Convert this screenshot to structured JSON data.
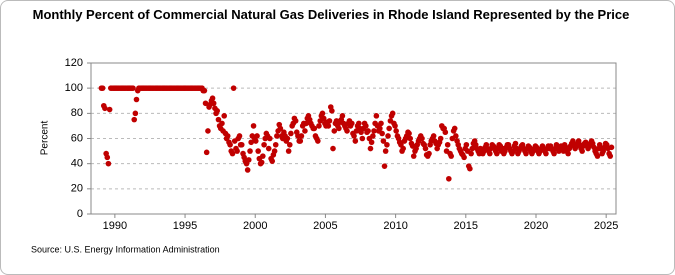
{
  "chart_data": {
    "type": "scatter",
    "title": "Monthly Percent of Commercial Natural Gas Deliveries in Rhode Island Represented by the Price",
    "y_label": "Percent",
    "source": "Source: U.S. Energy Information Administration",
    "color": "#c00000",
    "grid": true,
    "xlim": [
      1988.3,
      2025.7
    ],
    "xticks": [
      1990,
      1995,
      2000,
      2005,
      2010,
      2015,
      2020,
      2025
    ],
    "ylim": [
      0,
      120
    ],
    "yticks": [
      0,
      20,
      40,
      60,
      80,
      100,
      120
    ],
    "x": [
      1989.04,
      1989.13,
      1989.21,
      1989.29,
      1989.38,
      1989.46,
      1989.54,
      1989.63,
      1989.71,
      1989.79,
      1989.88,
      1989.96,
      1990.04,
      1990.13,
      1990.21,
      1990.29,
      1990.38,
      1990.46,
      1990.54,
      1990.63,
      1990.71,
      1990.79,
      1990.88,
      1990.96,
      1991.04,
      1991.13,
      1991.21,
      1991.29,
      1991.38,
      1991.46,
      1991.54,
      1991.63,
      1991.71,
      1991.79,
      1991.88,
      1991.96,
      1992.04,
      1992.13,
      1992.21,
      1992.29,
      1992.38,
      1992.46,
      1992.54,
      1992.63,
      1992.71,
      1992.79,
      1992.88,
      1992.96,
      1993.04,
      1993.13,
      1993.21,
      1993.29,
      1993.38,
      1993.46,
      1993.54,
      1993.63,
      1993.71,
      1993.79,
      1993.88,
      1993.96,
      1994.04,
      1994.13,
      1994.21,
      1994.29,
      1994.38,
      1994.46,
      1994.54,
      1994.63,
      1994.71,
      1994.79,
      1994.88,
      1994.96,
      1995.04,
      1995.13,
      1995.21,
      1995.29,
      1995.38,
      1995.46,
      1995.54,
      1995.63,
      1995.71,
      1995.79,
      1995.88,
      1995.96,
      1996.04,
      1996.13,
      1996.21,
      1996.29,
      1996.38,
      1996.46,
      1996.54,
      1996.63,
      1996.71,
      1996.79,
      1996.88,
      1996.96,
      1997.04,
      1997.13,
      1997.21,
      1997.29,
      1997.38,
      1997.46,
      1997.54,
      1997.63,
      1997.71,
      1997.79,
      1997.88,
      1997.96,
      1998.04,
      1998.13,
      1998.21,
      1998.29,
      1998.38,
      1998.46,
      1998.54,
      1998.63,
      1998.71,
      1998.79,
      1998.88,
      1998.96,
      1999.04,
      1999.13,
      1999.21,
      1999.29,
      1999.38,
      1999.46,
      1999.54,
      1999.63,
      1999.71,
      1999.79,
      1999.88,
      1999.96,
      2000.04,
      2000.13,
      2000.21,
      2000.29,
      2000.38,
      2000.46,
      2000.54,
      2000.63,
      2000.71,
      2000.79,
      2000.88,
      2000.96,
      2001.04,
      2001.13,
      2001.21,
      2001.29,
      2001.38,
      2001.46,
      2001.54,
      2001.63,
      2001.71,
      2001.79,
      2001.88,
      2001.96,
      2002.04,
      2002.13,
      2002.21,
      2002.29,
      2002.38,
      2002.46,
      2002.54,
      2002.63,
      2002.71,
      2002.79,
      2002.88,
      2002.96,
      2003.04,
      2003.13,
      2003.21,
      2003.29,
      2003.38,
      2003.46,
      2003.54,
      2003.63,
      2003.71,
      2003.79,
      2003.88,
      2003.96,
      2004.04,
      2004.13,
      2004.21,
      2004.29,
      2004.38,
      2004.46,
      2004.54,
      2004.63,
      2004.71,
      2004.79,
      2004.88,
      2004.96,
      2005.04,
      2005.13,
      2005.21,
      2005.29,
      2005.38,
      2005.46,
      2005.54,
      2005.63,
      2005.71,
      2005.79,
      2005.88,
      2005.96,
      2006.04,
      2006.13,
      2006.21,
      2006.29,
      2006.38,
      2006.46,
      2006.54,
      2006.63,
      2006.71,
      2006.79,
      2006.88,
      2006.96,
      2007.04,
      2007.13,
      2007.21,
      2007.29,
      2007.38,
      2007.46,
      2007.54,
      2007.63,
      2007.71,
      2007.79,
      2007.88,
      2007.96,
      2008.04,
      2008.13,
      2008.21,
      2008.29,
      2008.38,
      2008.46,
      2008.54,
      2008.63,
      2008.71,
      2008.79,
      2008.88,
      2008.96,
      2009.04,
      2009.13,
      2009.21,
      2009.29,
      2009.38,
      2009.46,
      2009.54,
      2009.63,
      2009.71,
      2009.79,
      2009.88,
      2009.96,
      2010.04,
      2010.13,
      2010.21,
      2010.29,
      2010.38,
      2010.46,
      2010.54,
      2010.63,
      2010.71,
      2010.79,
      2010.88,
      2010.96,
      2011.04,
      2011.13,
      2011.21,
      2011.29,
      2011.38,
      2011.46,
      2011.54,
      2011.63,
      2011.71,
      2011.79,
      2011.88,
      2011.96,
      2012.04,
      2012.13,
      2012.21,
      2012.29,
      2012.38,
      2012.46,
      2012.54,
      2012.63,
      2012.71,
      2012.79,
      2012.88,
      2012.96,
      2013.04,
      2013.13,
      2013.21,
      2013.29,
      2013.38,
      2013.46,
      2013.54,
      2013.63,
      2013.71,
      2013.79,
      2013.88,
      2013.96,
      2014.04,
      2014.13,
      2014.21,
      2014.29,
      2014.38,
      2014.46,
      2014.54,
      2014.63,
      2014.71,
      2014.79,
      2014.88,
      2014.96,
      2015.04,
      2015.13,
      2015.21,
      2015.29,
      2015.38,
      2015.46,
      2015.54,
      2015.63,
      2015.71,
      2015.79,
      2015.88,
      2015.96,
      2016.04,
      2016.13,
      2016.21,
      2016.29,
      2016.38,
      2016.46,
      2016.54,
      2016.63,
      2016.71,
      2016.79,
      2016.88,
      2016.96,
      2017.04,
      2017.13,
      2017.21,
      2017.29,
      2017.38,
      2017.46,
      2017.54,
      2017.63,
      2017.71,
      2017.79,
      2017.88,
      2017.96,
      2018.04,
      2018.13,
      2018.21,
      2018.29,
      2018.38,
      2018.46,
      2018.54,
      2018.63,
      2018.71,
      2018.79,
      2018.88,
      2018.96,
      2019.04,
      2019.13,
      2019.21,
      2019.29,
      2019.38,
      2019.46,
      2019.54,
      2019.63,
      2019.71,
      2019.79,
      2019.88,
      2019.96,
      2020.04,
      2020.13,
      2020.21,
      2020.29,
      2020.38,
      2020.46,
      2020.54,
      2020.63,
      2020.71,
      2020.79,
      2020.88,
      2020.96,
      2021.04,
      2021.13,
      2021.21,
      2021.29,
      2021.38,
      2021.46,
      2021.54,
      2021.63,
      2021.71,
      2021.79,
      2021.88,
      2021.96,
      2022.04,
      2022.13,
      2022.21,
      2022.29,
      2022.38,
      2022.46,
      2022.54,
      2022.63,
      2022.71,
      2022.79,
      2022.88,
      2022.96,
      2023.04,
      2023.13,
      2023.21,
      2023.29,
      2023.38,
      2023.46,
      2023.54,
      2023.63,
      2023.71,
      2023.79,
      2023.88,
      2023.96,
      2024.04,
      2024.13,
      2024.21,
      2024.29,
      2024.38,
      2024.46,
      2024.54,
      2024.63,
      2024.71,
      2024.79,
      2024.88,
      2024.96,
      2025.04,
      2025.13,
      2025.21,
      2025.29,
      2025.38
    ],
    "values": [
      100,
      100,
      86,
      84,
      48,
      45,
      40,
      83,
      100,
      100,
      100,
      100,
      100,
      100,
      100,
      100,
      100,
      100,
      100,
      100,
      100,
      100,
      100,
      100,
      100,
      100,
      100,
      100,
      75,
      80,
      91,
      98,
      100,
      100,
      100,
      100,
      100,
      100,
      100,
      100,
      100,
      100,
      100,
      100,
      100,
      100,
      100,
      100,
      100,
      100,
      100,
      100,
      100,
      100,
      100,
      100,
      100,
      100,
      100,
      100,
      100,
      100,
      100,
      100,
      100,
      100,
      100,
      100,
      100,
      100,
      100,
      100,
      100,
      100,
      100,
      100,
      100,
      100,
      100,
      100,
      100,
      100,
      100,
      100,
      100,
      100,
      100,
      98,
      98,
      88,
      49,
      66,
      85,
      87,
      90,
      92,
      88,
      84,
      80,
      82,
      75,
      70,
      68,
      72,
      66,
      78,
      64,
      60,
      62,
      57,
      55,
      50,
      48,
      100,
      58,
      52,
      50,
      60,
      62,
      55,
      55,
      48,
      45,
      42,
      40,
      35,
      43,
      50,
      57,
      62,
      70,
      60,
      58,
      62,
      50,
      44,
      40,
      41,
      46,
      55,
      60,
      64,
      62,
      52,
      60,
      44,
      42,
      47,
      50,
      55,
      62,
      66,
      71,
      68,
      62,
      60,
      65,
      62,
      58,
      60,
      50,
      55,
      64,
      70,
      72,
      76,
      74,
      65,
      62,
      58,
      58,
      62,
      70,
      72,
      66,
      72,
      76,
      78,
      75,
      72,
      70,
      68,
      68,
      62,
      60,
      58,
      70,
      74,
      78,
      80,
      76,
      72,
      70,
      73,
      70,
      74,
      85,
      82,
      52,
      66,
      72,
      74,
      70,
      68,
      73,
      75,
      78,
      72,
      70,
      68,
      66,
      72,
      74,
      70,
      72,
      64,
      62,
      58,
      66,
      70,
      72,
      68,
      65,
      60,
      68,
      72,
      70,
      65,
      66,
      60,
      52,
      57,
      62,
      66,
      72,
      78,
      70,
      66,
      68,
      72,
      64,
      58,
      38,
      50,
      55,
      62,
      68,
      74,
      78,
      80,
      72,
      70,
      66,
      62,
      60,
      57,
      55,
      50,
      52,
      58,
      60,
      62,
      65,
      64,
      60,
      56,
      54,
      46,
      50,
      52,
      55,
      58,
      60,
      62,
      60,
      56,
      55,
      52,
      47,
      46,
      48,
      55,
      58,
      60,
      62,
      58,
      56,
      52,
      55,
      57,
      60,
      70,
      68,
      68,
      65,
      50,
      55,
      28,
      48,
      46,
      60,
      66,
      68,
      62,
      58,
      55,
      52,
      50,
      48,
      47,
      45,
      52,
      55,
      50,
      38,
      36,
      48,
      52,
      56,
      58,
      55,
      52,
      50,
      48,
      52,
      50,
      48,
      50,
      53,
      55,
      52,
      50,
      48,
      52,
      55,
      54,
      53,
      50,
      48,
      52,
      55,
      54,
      50,
      52,
      48,
      50,
      53,
      55,
      55,
      52,
      50,
      48,
      50,
      54,
      56,
      52,
      48,
      50,
      52,
      54,
      55,
      52,
      50,
      48,
      52,
      54,
      53,
      50,
      48,
      50,
      52,
      54,
      53,
      50,
      48,
      50,
      52,
      54,
      52,
      50,
      48,
      52,
      54,
      52,
      54,
      52,
      50,
      48,
      52,
      55,
      53,
      50,
      52,
      54,
      52,
      50,
      55,
      53,
      50,
      48,
      52,
      54,
      56,
      58,
      55,
      52,
      54,
      56,
      58,
      55,
      52,
      50,
      54,
      56,
      57,
      55,
      52,
      54,
      56,
      58,
      56,
      53,
      50,
      48,
      46,
      52,
      55,
      52,
      48,
      50,
      53,
      56,
      55,
      52,
      48,
      46,
      53
    ]
  }
}
